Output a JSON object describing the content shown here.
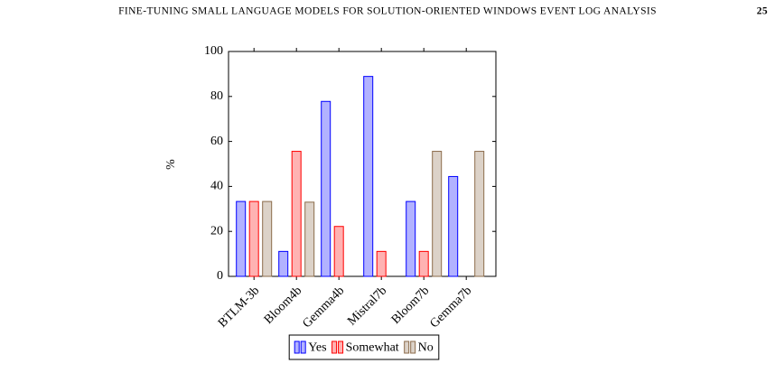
{
  "header": {
    "title": "FINE-TUNING SMALL LANGUAGE MODELS FOR SOLUTION-ORIENTED WINDOWS EVENT LOG ANALYSIS",
    "page": "25"
  },
  "chart_data": {
    "type": "bar",
    "ylabel": "%",
    "categories": [
      "BTLM-3b",
      "Bloom4b",
      "Gemma4b",
      "Mistral7b",
      "Bloom7b",
      "Gemma7b"
    ],
    "series": [
      {
        "name": "Yes",
        "color": "#0000ff",
        "values": [
          33.3,
          11.1,
          77.8,
          88.9,
          33.3,
          44.4
        ]
      },
      {
        "name": "Somewhat",
        "color": "#ff0000",
        "values": [
          33.3,
          55.6,
          22.2,
          11.1,
          11.1,
          0
        ]
      },
      {
        "name": "No",
        "color": "#8b6b4a",
        "values": [
          33.3,
          33.0,
          0,
          0,
          55.6,
          55.6
        ]
      }
    ],
    "ylim": [
      0,
      100
    ],
    "yticks": [
      0,
      20,
      40,
      60,
      80,
      100
    ],
    "grid": false,
    "legend": "bottom"
  }
}
